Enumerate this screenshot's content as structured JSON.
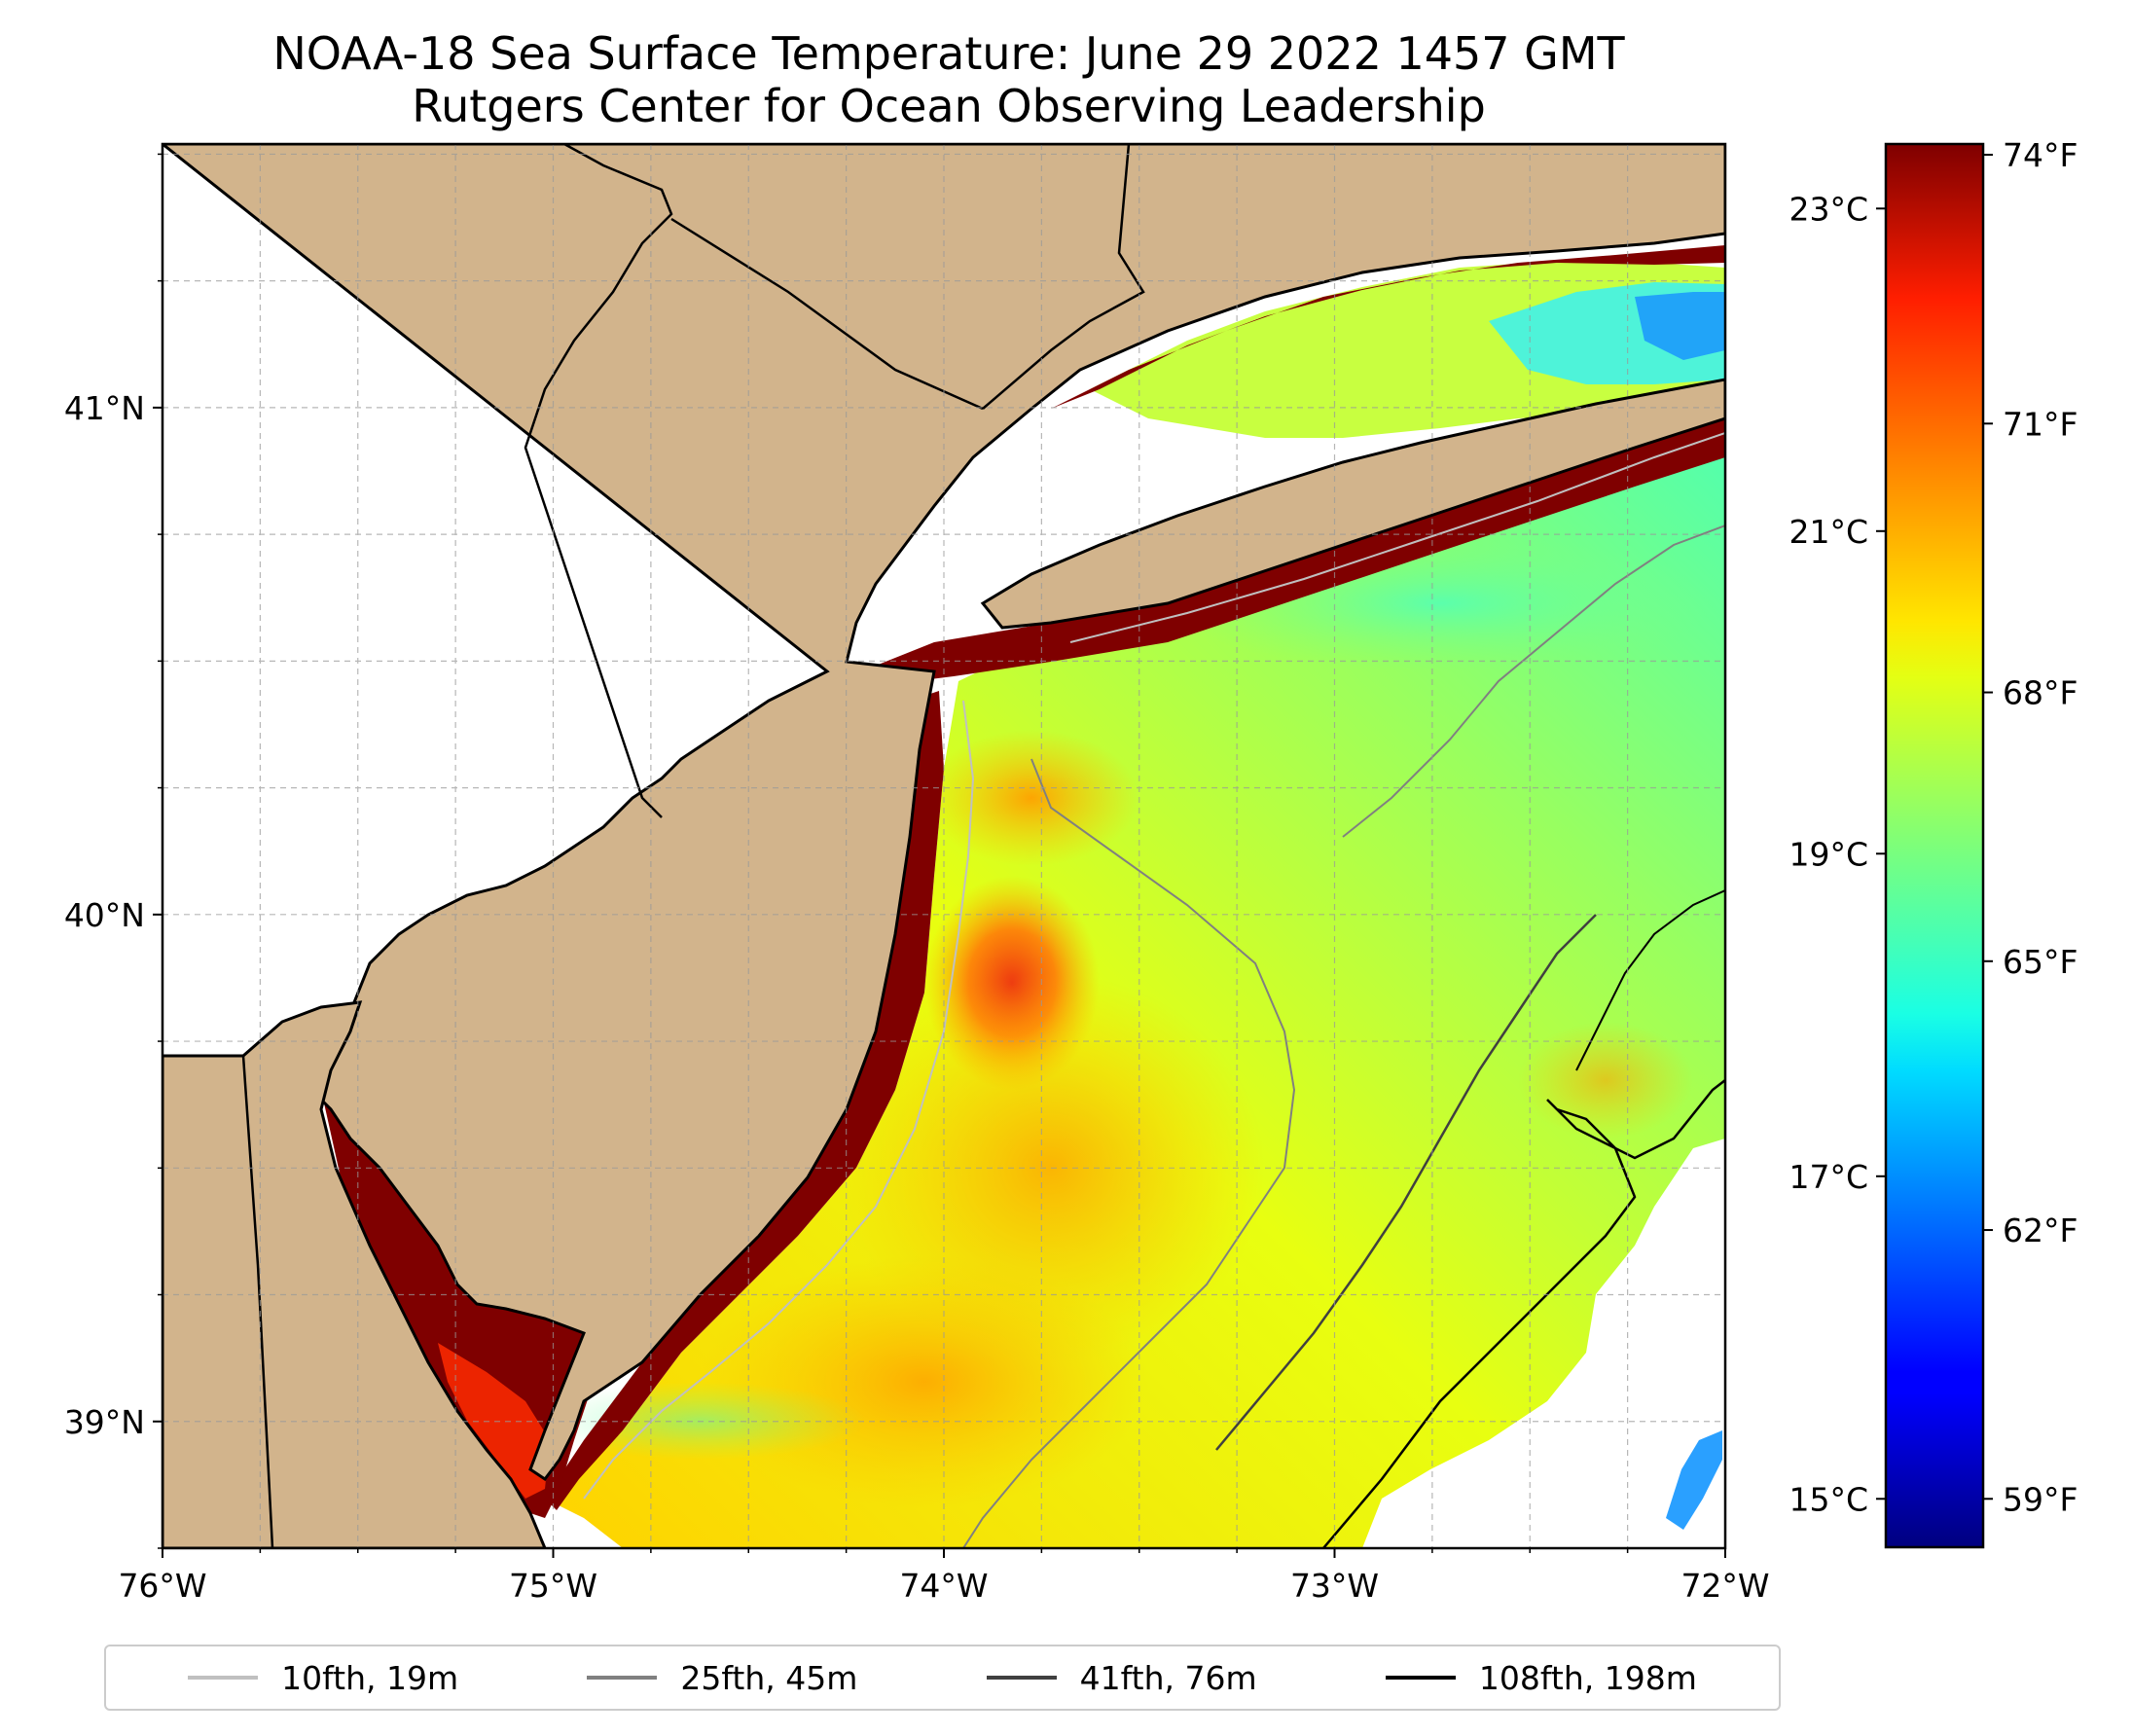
{
  "title": {
    "line1": "NOAA-18 Sea Surface Temperature: June 29 2022 1457 GMT",
    "line2": "Rutgers Center for Ocean Observing Leadership"
  },
  "map": {
    "lon_range": [
      -76.0,
      -72.0
    ],
    "lat_range": [
      38.75,
      41.52
    ],
    "x_ticks": [
      {
        "value": -76,
        "label": "76°W"
      },
      {
        "value": -75,
        "label": "75°W"
      },
      {
        "value": -74,
        "label": "74°W"
      },
      {
        "value": -73,
        "label": "73°W"
      },
      {
        "value": -72,
        "label": "72°W"
      }
    ],
    "y_ticks": [
      {
        "value": 41,
        "label": "41°N"
      },
      {
        "value": 40,
        "label": "40°N"
      },
      {
        "value": 39,
        "label": "39°N"
      }
    ],
    "land_color": "#d2b48c",
    "grid": true
  },
  "colorbar": {
    "colormap": "jet",
    "celsius_range": [
      14.7,
      23.4
    ],
    "celsius_ticks": [
      {
        "value": 15,
        "label": "15°C"
      },
      {
        "value": 17,
        "label": "17°C"
      },
      {
        "value": 19,
        "label": "19°C"
      },
      {
        "value": 21,
        "label": "21°C"
      },
      {
        "value": 23,
        "label": "23°C"
      }
    ],
    "fahrenheit_ticks": [
      {
        "value": 59,
        "label": "59°F"
      },
      {
        "value": 62,
        "label": "62°F"
      },
      {
        "value": 65,
        "label": "65°F"
      },
      {
        "value": 68,
        "label": "68°F"
      },
      {
        "value": 71,
        "label": "71°F"
      },
      {
        "value": 74,
        "label": "74°F"
      }
    ]
  },
  "legend": [
    {
      "label": "10fth, 19m",
      "color": "#c0c0c0"
    },
    {
      "label": "25fth, 45m",
      "color": "#808080"
    },
    {
      "label": "41fth, 76m",
      "color": "#404040"
    },
    {
      "label": "108fth, 198m",
      "color": "#000000"
    }
  ]
}
